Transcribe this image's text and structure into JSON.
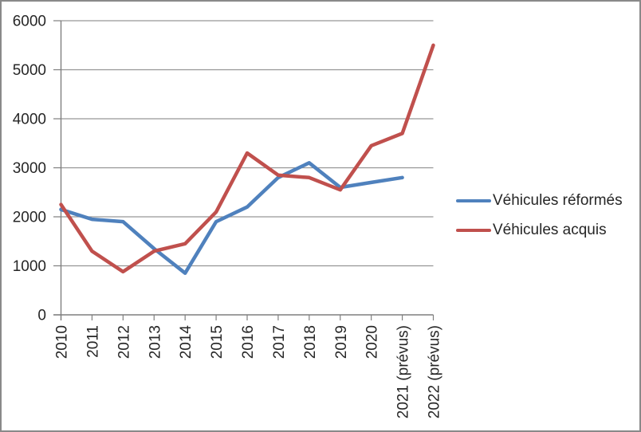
{
  "chart_data": {
    "type": "line",
    "title": "",
    "xlabel": "",
    "ylabel": "",
    "categories": [
      "2010",
      "2011",
      "2012",
      "2013",
      "2014",
      "2015",
      "2016",
      "2017",
      "2018",
      "2019",
      "2020",
      "2021 (prévus)",
      "2022 (prévus)"
    ],
    "series": [
      {
        "name": "Véhicules réformés",
        "color": "#4F81BD",
        "values": [
          2150,
          1950,
          1900,
          1350,
          850,
          1900,
          2200,
          2800,
          3100,
          2600,
          2700,
          2800,
          null
        ]
      },
      {
        "name": "Véhicules acquis",
        "color": "#C0504D",
        "values": [
          2250,
          1300,
          880,
          1300,
          1450,
          2100,
          3300,
          2850,
          2800,
          2550,
          3450,
          3700,
          5500
        ]
      }
    ],
    "y_axis": {
      "min": 0,
      "max": 6000,
      "tick_step": 1000,
      "tick_labels": [
        "0",
        "1000",
        "2000",
        "3000",
        "4000",
        "5000",
        "6000"
      ]
    },
    "grid": true,
    "legend_position": "right",
    "x_labels_rotation_degrees": 90
  },
  "colors": {
    "gridline": "#969696",
    "axis": "#7F7F7F",
    "text": "#262626",
    "background": "#FFFFFF",
    "frame_border": "#898989"
  }
}
